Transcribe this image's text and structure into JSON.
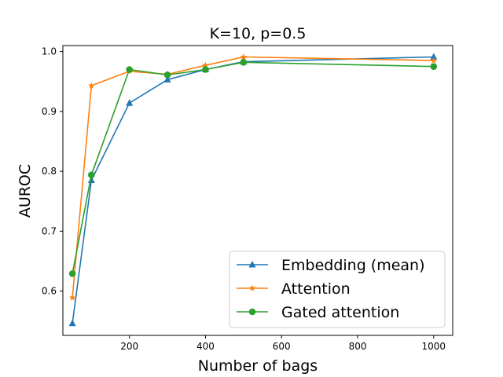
{
  "chart_data": {
    "type": "line",
    "title": "K=10, p=0.5",
    "xlabel": "Number of bags",
    "ylabel": "AUROC",
    "xlim": [
      25,
      1050
    ],
    "ylim": [
      0.526,
      1.01
    ],
    "xticks": [
      200,
      400,
      600,
      800,
      1000
    ],
    "yticks": [
      0.6,
      0.7,
      0.8,
      0.9,
      1.0
    ],
    "xtick_labels": [
      "200",
      "400",
      "600",
      "800",
      "1000"
    ],
    "ytick_labels": [
      "0.6",
      "0.7",
      "0.8",
      "0.9",
      "1.0"
    ],
    "legend_position": "lower-right",
    "series": [
      {
        "name": "Embedding (mean)",
        "color": "#1f77b4",
        "marker": "triangle",
        "x": [
          50,
          100,
          200,
          300,
          400,
          500,
          1000
        ],
        "y": [
          0.546,
          0.785,
          0.914,
          0.953,
          0.97,
          0.983,
          0.991
        ]
      },
      {
        "name": "Attention",
        "color": "#ff7f0e",
        "marker": "star",
        "x": [
          50,
          100,
          200,
          300,
          400,
          500,
          1000
        ],
        "y": [
          0.589,
          0.943,
          0.967,
          0.962,
          0.977,
          0.991,
          0.985
        ]
      },
      {
        "name": "Gated attention",
        "color": "#2ca02c",
        "marker": "circle",
        "x": [
          50,
          100,
          200,
          300,
          400,
          500,
          1000
        ],
        "y": [
          0.629,
          0.794,
          0.97,
          0.961,
          0.97,
          0.982,
          0.975
        ]
      }
    ]
  }
}
